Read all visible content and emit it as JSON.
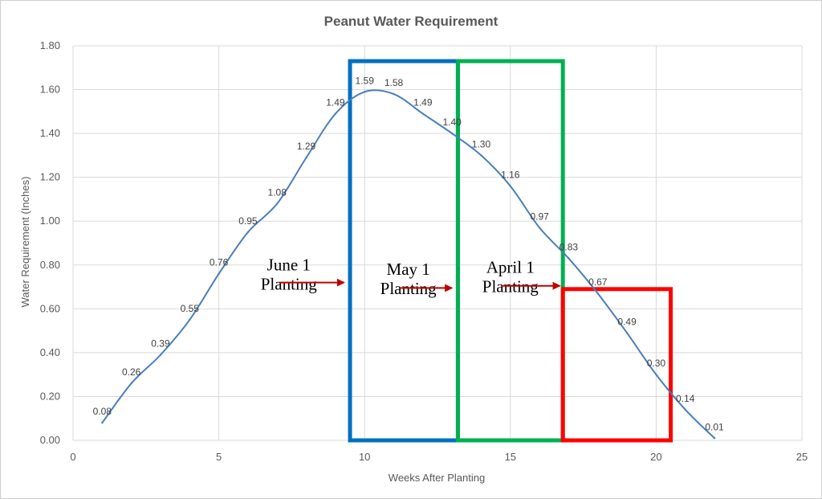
{
  "chart_data": {
    "type": "line",
    "title": "Peanut Water Requirement",
    "xlabel": "Weeks After Planting",
    "ylabel": "Water Requirement (Inches)",
    "xlim": [
      0,
      25
    ],
    "ylim": [
      0,
      1.8
    ],
    "x_ticks": [
      0,
      5,
      10,
      15,
      20,
      25
    ],
    "y_ticks": [
      "0.00",
      "0.20",
      "0.40",
      "0.60",
      "0.80",
      "1.00",
      "1.20",
      "1.40",
      "1.60",
      "1.80"
    ],
    "grid": true,
    "line_color": "#4a7ebb",
    "series": [
      {
        "x": [
          1,
          2,
          3,
          4,
          5,
          6,
          7,
          8,
          9,
          10,
          11,
          12,
          13,
          14,
          15,
          16,
          17,
          18,
          19,
          20,
          21,
          22
        ],
        "values": [
          0.08,
          0.26,
          0.39,
          0.55,
          0.76,
          0.95,
          1.08,
          1.29,
          1.49,
          1.59,
          1.58,
          1.49,
          1.4,
          1.3,
          1.16,
          0.97,
          0.83,
          0.67,
          0.49,
          0.3,
          0.14,
          0.01
        ],
        "labels": [
          "0.08",
          "0.26",
          "0.39",
          "0.55",
          "0.76",
          "0.95",
          "1.08",
          "1.29",
          "1.49",
          "1.59",
          "1.58",
          "1.49",
          "1.40",
          "1.30",
          "1.16",
          "0.97",
          "0.83",
          "0.67",
          "0.49",
          "0.30",
          "0.14",
          "0.01"
        ]
      }
    ],
    "highlight_boxes": [
      {
        "color": "#0070c0",
        "x_range": [
          9.5,
          13.2
        ],
        "y_range": [
          0,
          1.73
        ]
      },
      {
        "color": "#00b050",
        "x_range": [
          13.2,
          16.8
        ],
        "y_range": [
          0,
          1.73
        ]
      },
      {
        "color": "#ff0000",
        "x_range": [
          16.8,
          20.5
        ],
        "y_range": [
          0,
          0.69
        ]
      }
    ],
    "annotations": [
      {
        "lines": [
          "June 1",
          "Planting"
        ],
        "x": 7.4,
        "y": 0.775,
        "arrow_to_x": 9.3,
        "arrow_y": 0.72
      },
      {
        "lines": [
          "May 1",
          "Planting"
        ],
        "x": 11.5,
        "y": 0.755,
        "arrow_to_x": 13.0,
        "arrow_y": 0.695
      },
      {
        "lines": [
          "April 1",
          "Planting"
        ],
        "x": 15.0,
        "y": 0.765,
        "arrow_to_x": 16.7,
        "arrow_y": 0.705
      }
    ],
    "arrow_color": "#c00000"
  }
}
